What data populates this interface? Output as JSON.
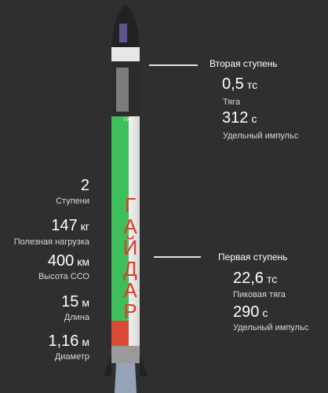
{
  "rocket": {
    "name_letters": [
      "Г",
      "А",
      "Й",
      "Д",
      "А",
      "Р"
    ],
    "logo_text": "ГИН",
    "colors": {
      "green": "#3fbf5a",
      "body": "#f2f2f2",
      "nose": "#222222",
      "red": "#d94a36",
      "text_red": "#e23a2a"
    }
  },
  "second_stage": {
    "title": "Вторая ступень",
    "thrust": {
      "value": "0,5",
      "unit": "тс",
      "label": "Тяга"
    },
    "impulse": {
      "value": "312",
      "unit": "с",
      "label": "Удельный импульс"
    }
  },
  "first_stage": {
    "title": "Первая ступень",
    "thrust": {
      "value": "22,6",
      "unit": "тс",
      "label": "Пиковая тяга"
    },
    "impulse": {
      "value": "290",
      "unit": "с",
      "label": "Удельный импульс"
    }
  },
  "specs": [
    {
      "value": "2",
      "unit": "",
      "label": "Ступени"
    },
    {
      "value": "147",
      "unit": "кг",
      "label": "Полезная нагрузка"
    },
    {
      "value": "400",
      "unit": "км",
      "label": "Высота ССО"
    },
    {
      "value": "15",
      "unit": "м",
      "label": "Длина"
    },
    {
      "value": "1,16",
      "unit": "м",
      "label": "Диаметр"
    }
  ]
}
